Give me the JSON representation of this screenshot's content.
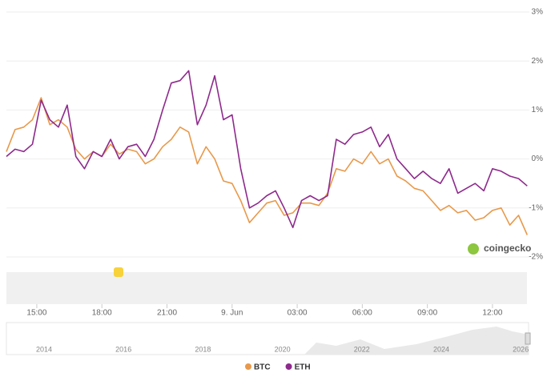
{
  "chart_data": {
    "type": "line",
    "x": [
      13.6,
      14.0,
      14.4,
      14.8,
      15.2,
      15.6,
      16.0,
      16.4,
      16.8,
      17.2,
      17.6,
      18.0,
      18.4,
      18.8,
      19.2,
      19.6,
      20.0,
      20.4,
      20.8,
      21.2,
      21.6,
      22.0,
      22.4,
      22.8,
      23.2,
      23.6,
      24.0,
      24.4,
      24.8,
      25.2,
      25.6,
      26.0,
      26.4,
      26.8,
      27.2,
      27.6,
      28.0,
      28.4,
      28.8,
      29.2,
      29.6,
      30.0,
      30.4,
      30.8,
      31.2,
      31.6,
      32.0,
      32.4,
      32.8,
      33.2,
      33.6,
      34.0,
      34.4,
      34.8,
      35.2,
      35.6,
      36.0,
      36.4,
      36.8,
      37.2,
      37.6
    ],
    "series": [
      {
        "name": "BTC",
        "color": "#e8994a",
        "values": [
          0.15,
          0.6,
          0.65,
          0.8,
          1.25,
          0.7,
          0.8,
          0.65,
          0.2,
          0,
          0.15,
          0.05,
          0.3,
          0.1,
          0.2,
          0.15,
          -0.1,
          0,
          0.25,
          0.4,
          0.65,
          0.55,
          -0.1,
          0.25,
          0,
          -0.45,
          -0.5,
          -0.85,
          -1.3,
          -1.1,
          -0.9,
          -0.85,
          -1.15,
          -1.1,
          -0.9,
          -0.9,
          -0.95,
          -0.7,
          -0.2,
          -0.25,
          0,
          -0.1,
          0.15,
          -0.1,
          0,
          -0.35,
          -0.45,
          -0.6,
          -0.65,
          -0.85,
          -1.05,
          -0.95,
          -1.1,
          -1.05,
          -1.25,
          -1.2,
          -1.05,
          -1.0,
          -1.35,
          -1.15,
          -1.55
        ]
      },
      {
        "name": "ETH",
        "color": "#8e2a8c",
        "values": [
          0.05,
          0.2,
          0.15,
          0.3,
          1.2,
          0.8,
          0.65,
          1.1,
          0.05,
          -0.2,
          0.15,
          0.05,
          0.4,
          0,
          0.25,
          0.3,
          0.05,
          0.4,
          1.0,
          1.55,
          1.6,
          1.8,
          0.7,
          1.1,
          1.7,
          0.8,
          0.9,
          -0.2,
          -1.0,
          -0.9,
          -0.75,
          -0.65,
          -1.0,
          -1.4,
          -0.85,
          -0.75,
          -0.85,
          -0.75,
          0.4,
          0.3,
          0.5,
          0.55,
          0.65,
          0.25,
          0.5,
          0,
          -0.2,
          -0.4,
          -0.25,
          -0.4,
          -0.5,
          -0.2,
          -0.7,
          -0.6,
          -0.5,
          -0.65,
          -0.2,
          -0.25,
          -0.35,
          -0.4,
          -0.55
        ]
      }
    ],
    "xlim": [
      13.6,
      37.7
    ],
    "xticks": [
      {
        "value": 15,
        "label": "15:00"
      },
      {
        "value": 18,
        "label": "18:00"
      },
      {
        "value": 21,
        "label": "21:00"
      },
      {
        "value": 24,
        "label": "9. Jun"
      },
      {
        "value": 27,
        "label": "03:00"
      },
      {
        "value": 30,
        "label": "06:00"
      },
      {
        "value": 33,
        "label": "09:00"
      },
      {
        "value": 36,
        "label": "12:00"
      }
    ],
    "ylim": [
      -2,
      3
    ],
    "yticks": [
      {
        "value": -2,
        "label": "-2%"
      },
      {
        "value": -1,
        "label": "-1%"
      },
      {
        "value": 0,
        "label": "0%"
      },
      {
        "value": 1,
        "label": "1%"
      },
      {
        "value": 2,
        "label": "2%"
      },
      {
        "value": 3,
        "label": "3%"
      }
    ],
    "grid": true,
    "legend": "bottom",
    "watermark": "coingecko",
    "navigator_labels": [
      "2014",
      "2016",
      "2018",
      "2020",
      "2022",
      "2024",
      "2026"
    ]
  }
}
